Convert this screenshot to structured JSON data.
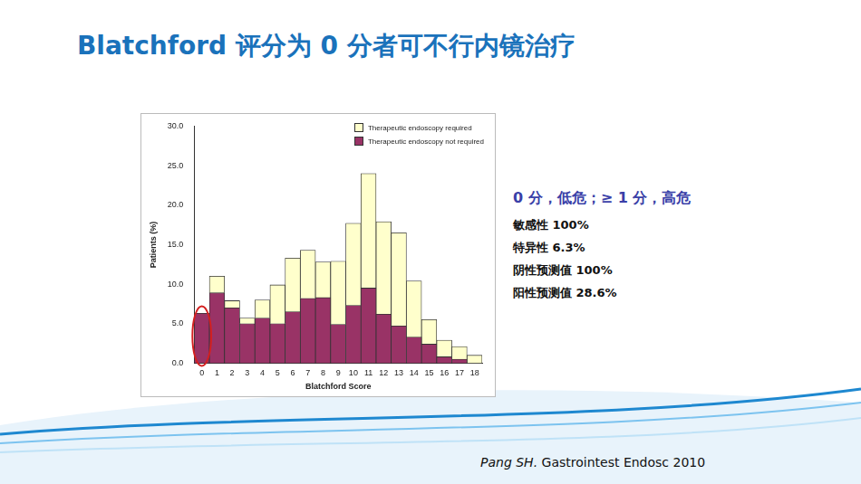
{
  "slide_title": "Blatchford 评分为 0 分者可不行内镜治疗",
  "chart_data": {
    "type": "bar",
    "stacked": true,
    "grid": false,
    "legend": "upper right",
    "x_label": "Blatchford Score",
    "y_label": "Patients (%)",
    "categories": [
      "0",
      "1",
      "2",
      "3",
      "4",
      "5",
      "6",
      "7",
      "8",
      "9",
      "10",
      "11",
      "12",
      "13",
      "14",
      "15",
      "16",
      "17",
      "18"
    ],
    "series": [
      {
        "name": "Therapeutic endoscopy not required",
        "color": "#993366",
        "values": [
          6.3,
          8.9,
          7.0,
          5.0,
          5.7,
          5.0,
          6.5,
          8.2,
          8.3,
          4.9,
          7.3,
          9.5,
          6.2,
          4.7,
          3.3,
          2.4,
          0.8,
          0.5,
          0.0
        ]
      },
      {
        "name": "Therapeutic endoscopy required",
        "color": "#ffffcc",
        "values": [
          0.0,
          2.1,
          0.9,
          0.7,
          2.3,
          4.9,
          6.8,
          6.1,
          4.5,
          8.0,
          10.4,
          14.5,
          11.7,
          11.8,
          7.1,
          3.1,
          2.1,
          1.6,
          1.0
        ]
      }
    ],
    "ylim": [
      0,
      30
    ],
    "yticks": [
      {
        "value": 0,
        "label": "0.0"
      },
      {
        "value": 5,
        "label": "5.0"
      },
      {
        "value": 10,
        "label": "10.0"
      },
      {
        "value": 15,
        "label": "15.0"
      },
      {
        "value": 20,
        "label": "20.0"
      },
      {
        "value": 25,
        "label": "25.0"
      },
      {
        "value": 30,
        "label": "30.0"
      }
    ]
  },
  "notes": {
    "head": "0 分，低危；≥ 1 分，高危",
    "items": [
      "敏感性 100%",
      "特异性 6.3%",
      "阴性预测值 100%",
      "阳性预测值 28.6%"
    ]
  },
  "citation": {
    "author": "Pang SH.",
    "source": "Gastrointest Endosc 2010"
  }
}
